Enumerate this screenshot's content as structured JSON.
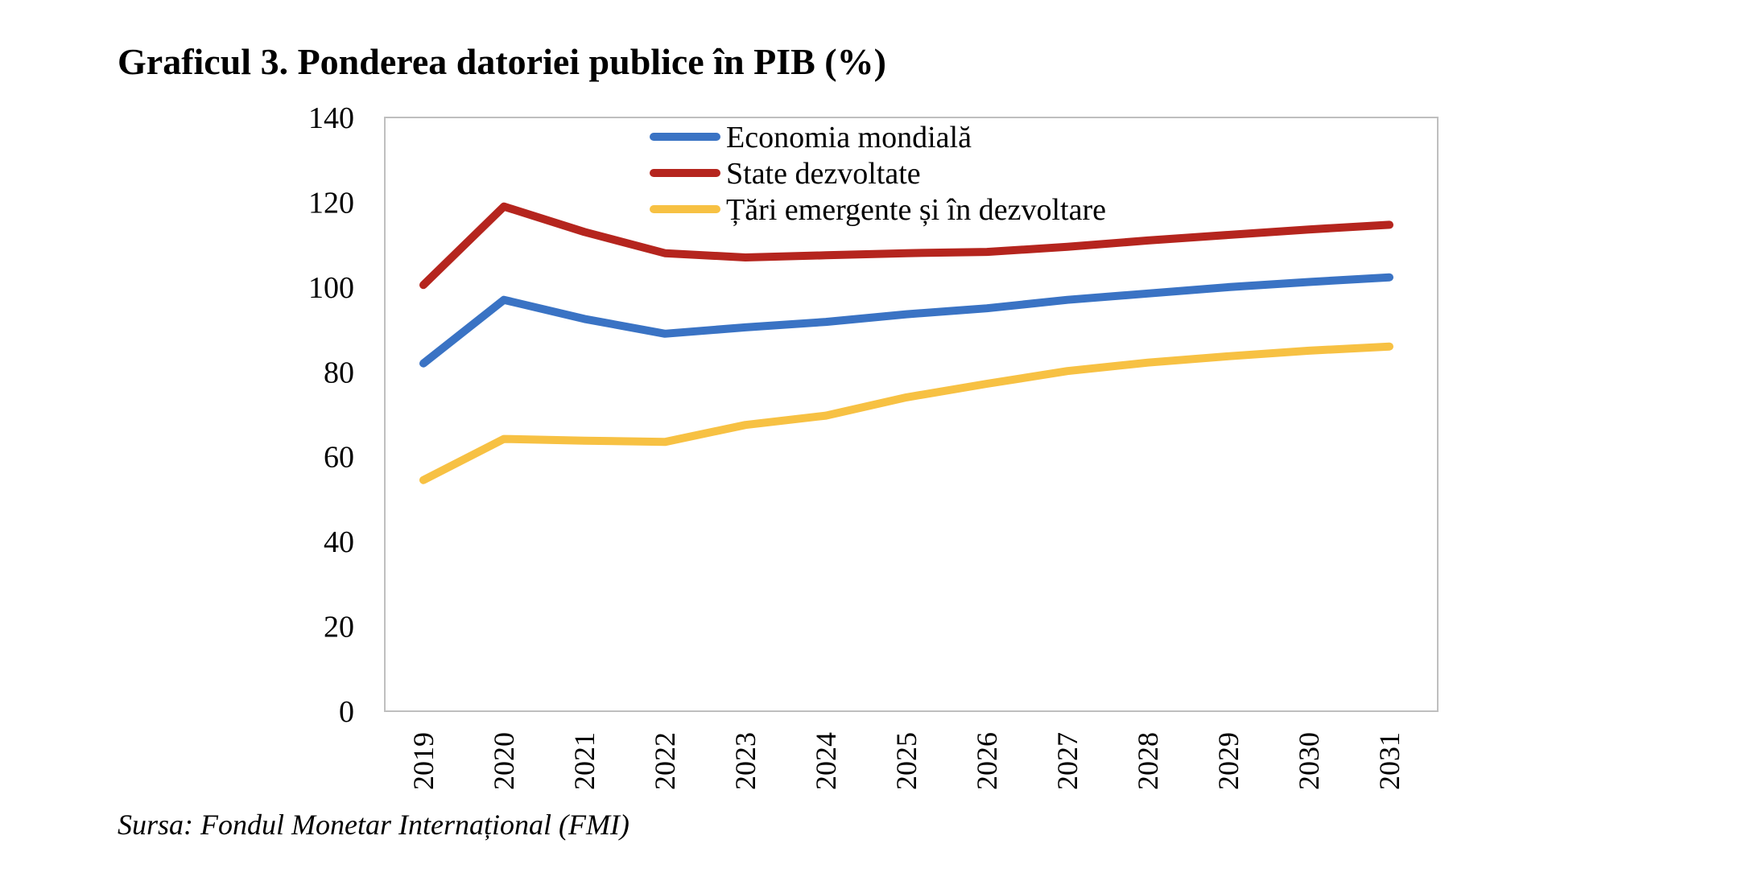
{
  "chart_data": {
    "type": "line",
    "title": "Graficul 3. Ponderea datoriei publice în PIB (%)",
    "xlabel": "",
    "ylabel": "",
    "ylim": [
      0,
      140
    ],
    "yticks": [
      0,
      20,
      40,
      60,
      80,
      100,
      120,
      140
    ],
    "categories": [
      "2019",
      "2020",
      "2021",
      "2022",
      "2023",
      "2024",
      "2025",
      "2026",
      "2027",
      "2028",
      "2029",
      "2030",
      "2031"
    ],
    "series": [
      {
        "name": "Economia mondială",
        "color": "#3A73C4",
        "values": [
          82,
          97,
          92.5,
          89,
          90.5,
          91.8,
          93.6,
          95,
          97,
          98.5,
          100,
          101.2,
          102.3
        ]
      },
      {
        "name": "State dezvoltate",
        "color": "#B5251E",
        "values": [
          100.5,
          119,
          113,
          108,
          107,
          107.5,
          108,
          108.3,
          109.5,
          111,
          112.3,
          113.6,
          114.7
        ]
      },
      {
        "name": "Țări emergente și în dezvoltare",
        "color": "#F7C143",
        "values": [
          54.5,
          64.2,
          63.8,
          63.5,
          67.5,
          69.7,
          74,
          77.2,
          80.2,
          82.2,
          83.7,
          85,
          86
        ]
      }
    ],
    "grid": false,
    "legend": "top-center, inside plot"
  },
  "source_note": "Sursa: Fondul Monetar Internațional (FMI)"
}
